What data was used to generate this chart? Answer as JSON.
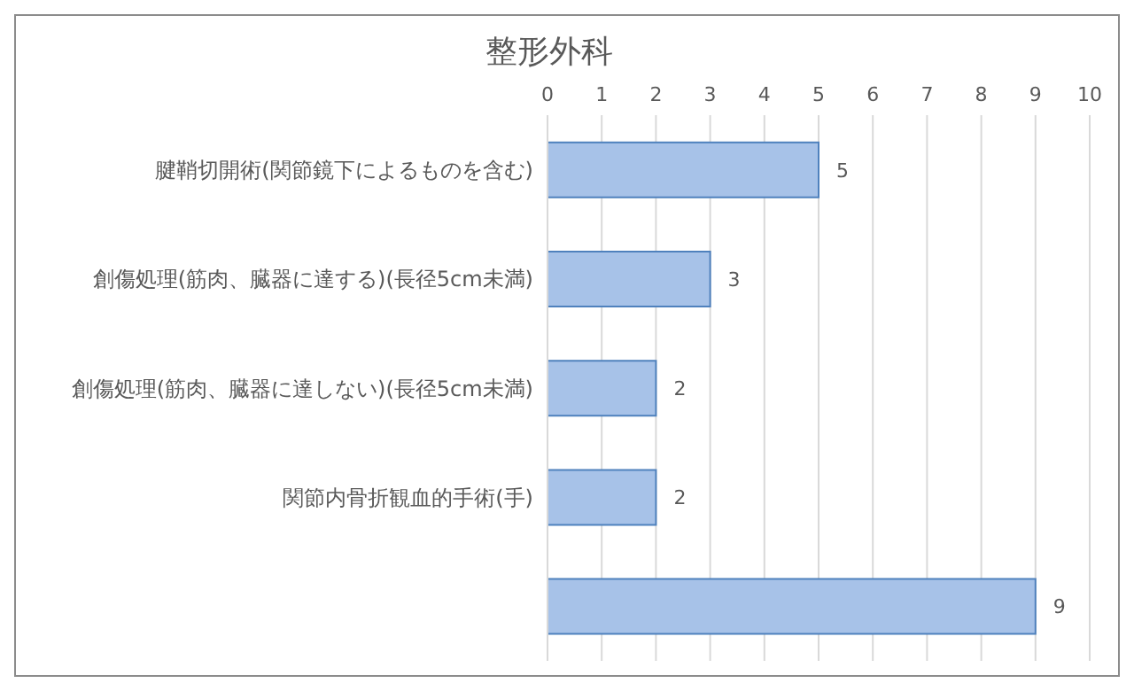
{
  "chart_data": {
    "type": "bar",
    "orientation": "horizontal",
    "title": "整形外科",
    "categories": [
      "腱鞘切開術(関節鏡下によるものを含む)",
      "創傷処理(筋肉、臓器に達する)(長径5cm未満)",
      "創傷処理(筋肉、臓器に達しない)(長径5cm未満)",
      "関節内骨折観血的手術(手)",
      null
    ],
    "values": [
      5,
      3,
      2,
      2,
      9
    ],
    "color": "#a7c2e8",
    "xlim": [
      0,
      10
    ],
    "xticks": [
      0,
      1,
      2,
      3,
      4,
      5,
      6,
      7,
      8,
      9,
      10
    ],
    "grid": "x",
    "data_labels": true,
    "legend": false
  }
}
